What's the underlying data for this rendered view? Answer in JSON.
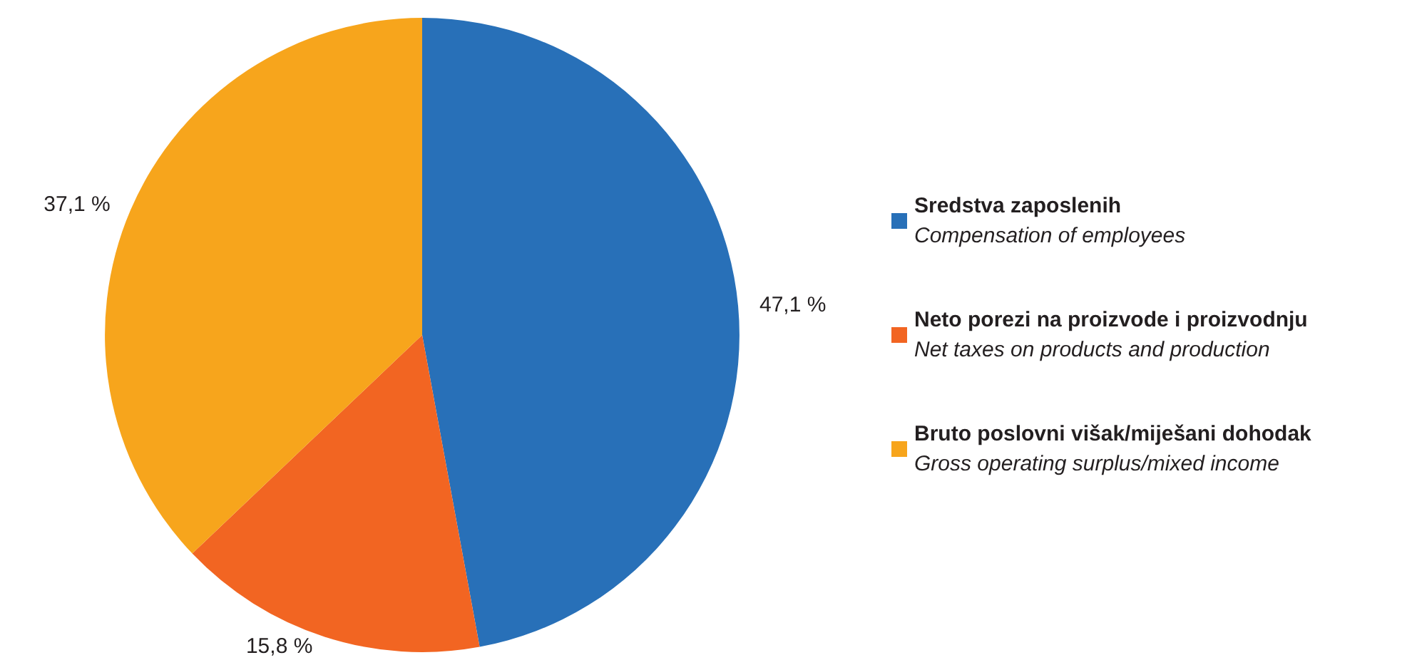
{
  "chart_data": {
    "type": "pie",
    "categories": [
      "Sredstva zaposlenih\nCompensation of employees",
      "Neto porezi na proizvode i proizvodnju\nNet taxes on products and production",
      "Bruto poslovni višak/miješani dohodak\nGross operating surplus/mixed income"
    ],
    "values": [
      47.1,
      15.8,
      37.1
    ],
    "colors": [
      "#2870b8",
      "#f26522",
      "#f7a51c"
    ],
    "value_labels": [
      "47,1 %",
      "15,8 %",
      "37,1 %"
    ],
    "legend": "right"
  }
}
